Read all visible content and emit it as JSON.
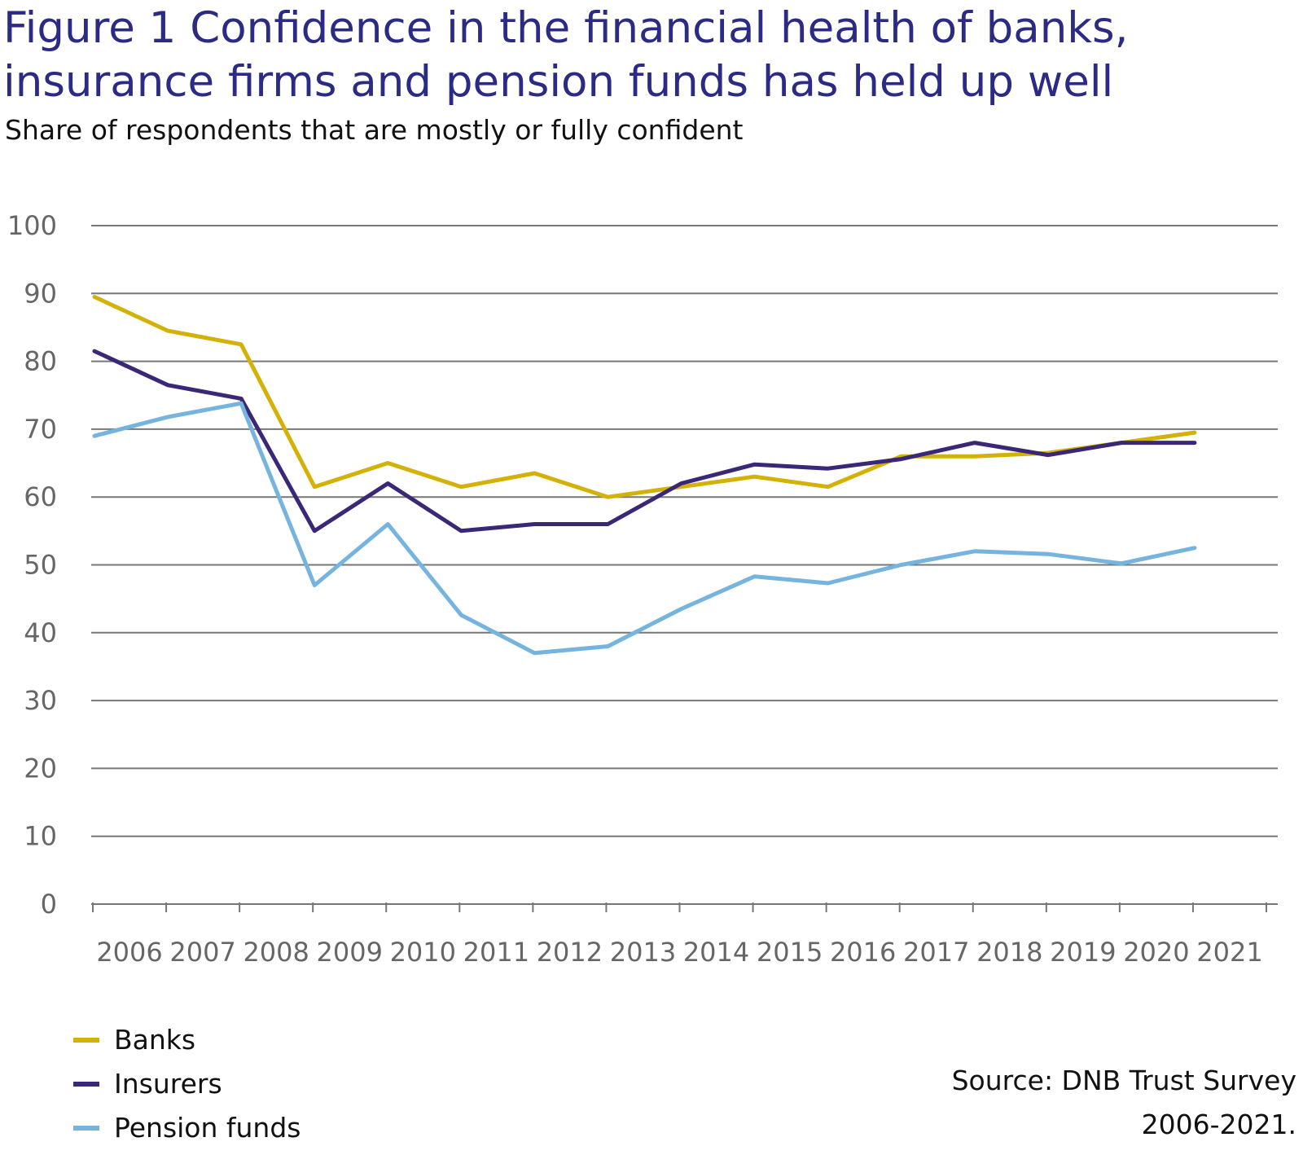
{
  "title": "Figure 1  Confidence in the financial health of banks, insurance firms and pension funds has held up well",
  "subtitle": "Share of respondents that are mostly or fully confident",
  "source_line1": "Source: DNB Trust Survey",
  "source_line2": "2006-2021.",
  "colors": {
    "banks": "#d4b106",
    "insurers": "#3b2777",
    "pension": "#74b4df",
    "grid": "#777777",
    "tick_text": "#666666"
  },
  "chart_data": {
    "type": "line",
    "title": "Figure 1  Confidence in the financial health of banks, insurance firms and pension funds has held up well",
    "subtitle": "Share of respondents that are mostly or fully confident",
    "categories": [
      "2006",
      "2007",
      "2008",
      "2009",
      "2010",
      "2011",
      "2012",
      "2013",
      "2014",
      "2015",
      "2016",
      "2017",
      "2018",
      "2019",
      "2020",
      "2021"
    ],
    "y_ticks": [
      "0",
      "10",
      "20",
      "30",
      "40",
      "50",
      "60",
      "70",
      "80",
      "90",
      "100"
    ],
    "ylim": [
      0,
      100
    ],
    "grid": true,
    "legend_position": "bottom-left",
    "series": [
      {
        "name": "Banks",
        "color": "#d4b106",
        "values": [
          89.5,
          84.5,
          82.5,
          61.5,
          65,
          61.5,
          63.5,
          60,
          61.5,
          63,
          61.5,
          66,
          66,
          66.5,
          68,
          69.5
        ]
      },
      {
        "name": "Insurers",
        "color": "#3b2777",
        "values": [
          81.5,
          76.5,
          74.5,
          55,
          62,
          55,
          56,
          56,
          62,
          64.8,
          64.2,
          65.6,
          68,
          66.2,
          68,
          68
        ]
      },
      {
        "name": "Pension funds",
        "color": "#74b4df",
        "values": [
          69,
          71.8,
          73.8,
          47,
          56,
          42.6,
          37,
          38,
          43.5,
          48.3,
          47.3,
          50,
          52,
          51.6,
          50.2,
          52.5
        ]
      }
    ]
  }
}
